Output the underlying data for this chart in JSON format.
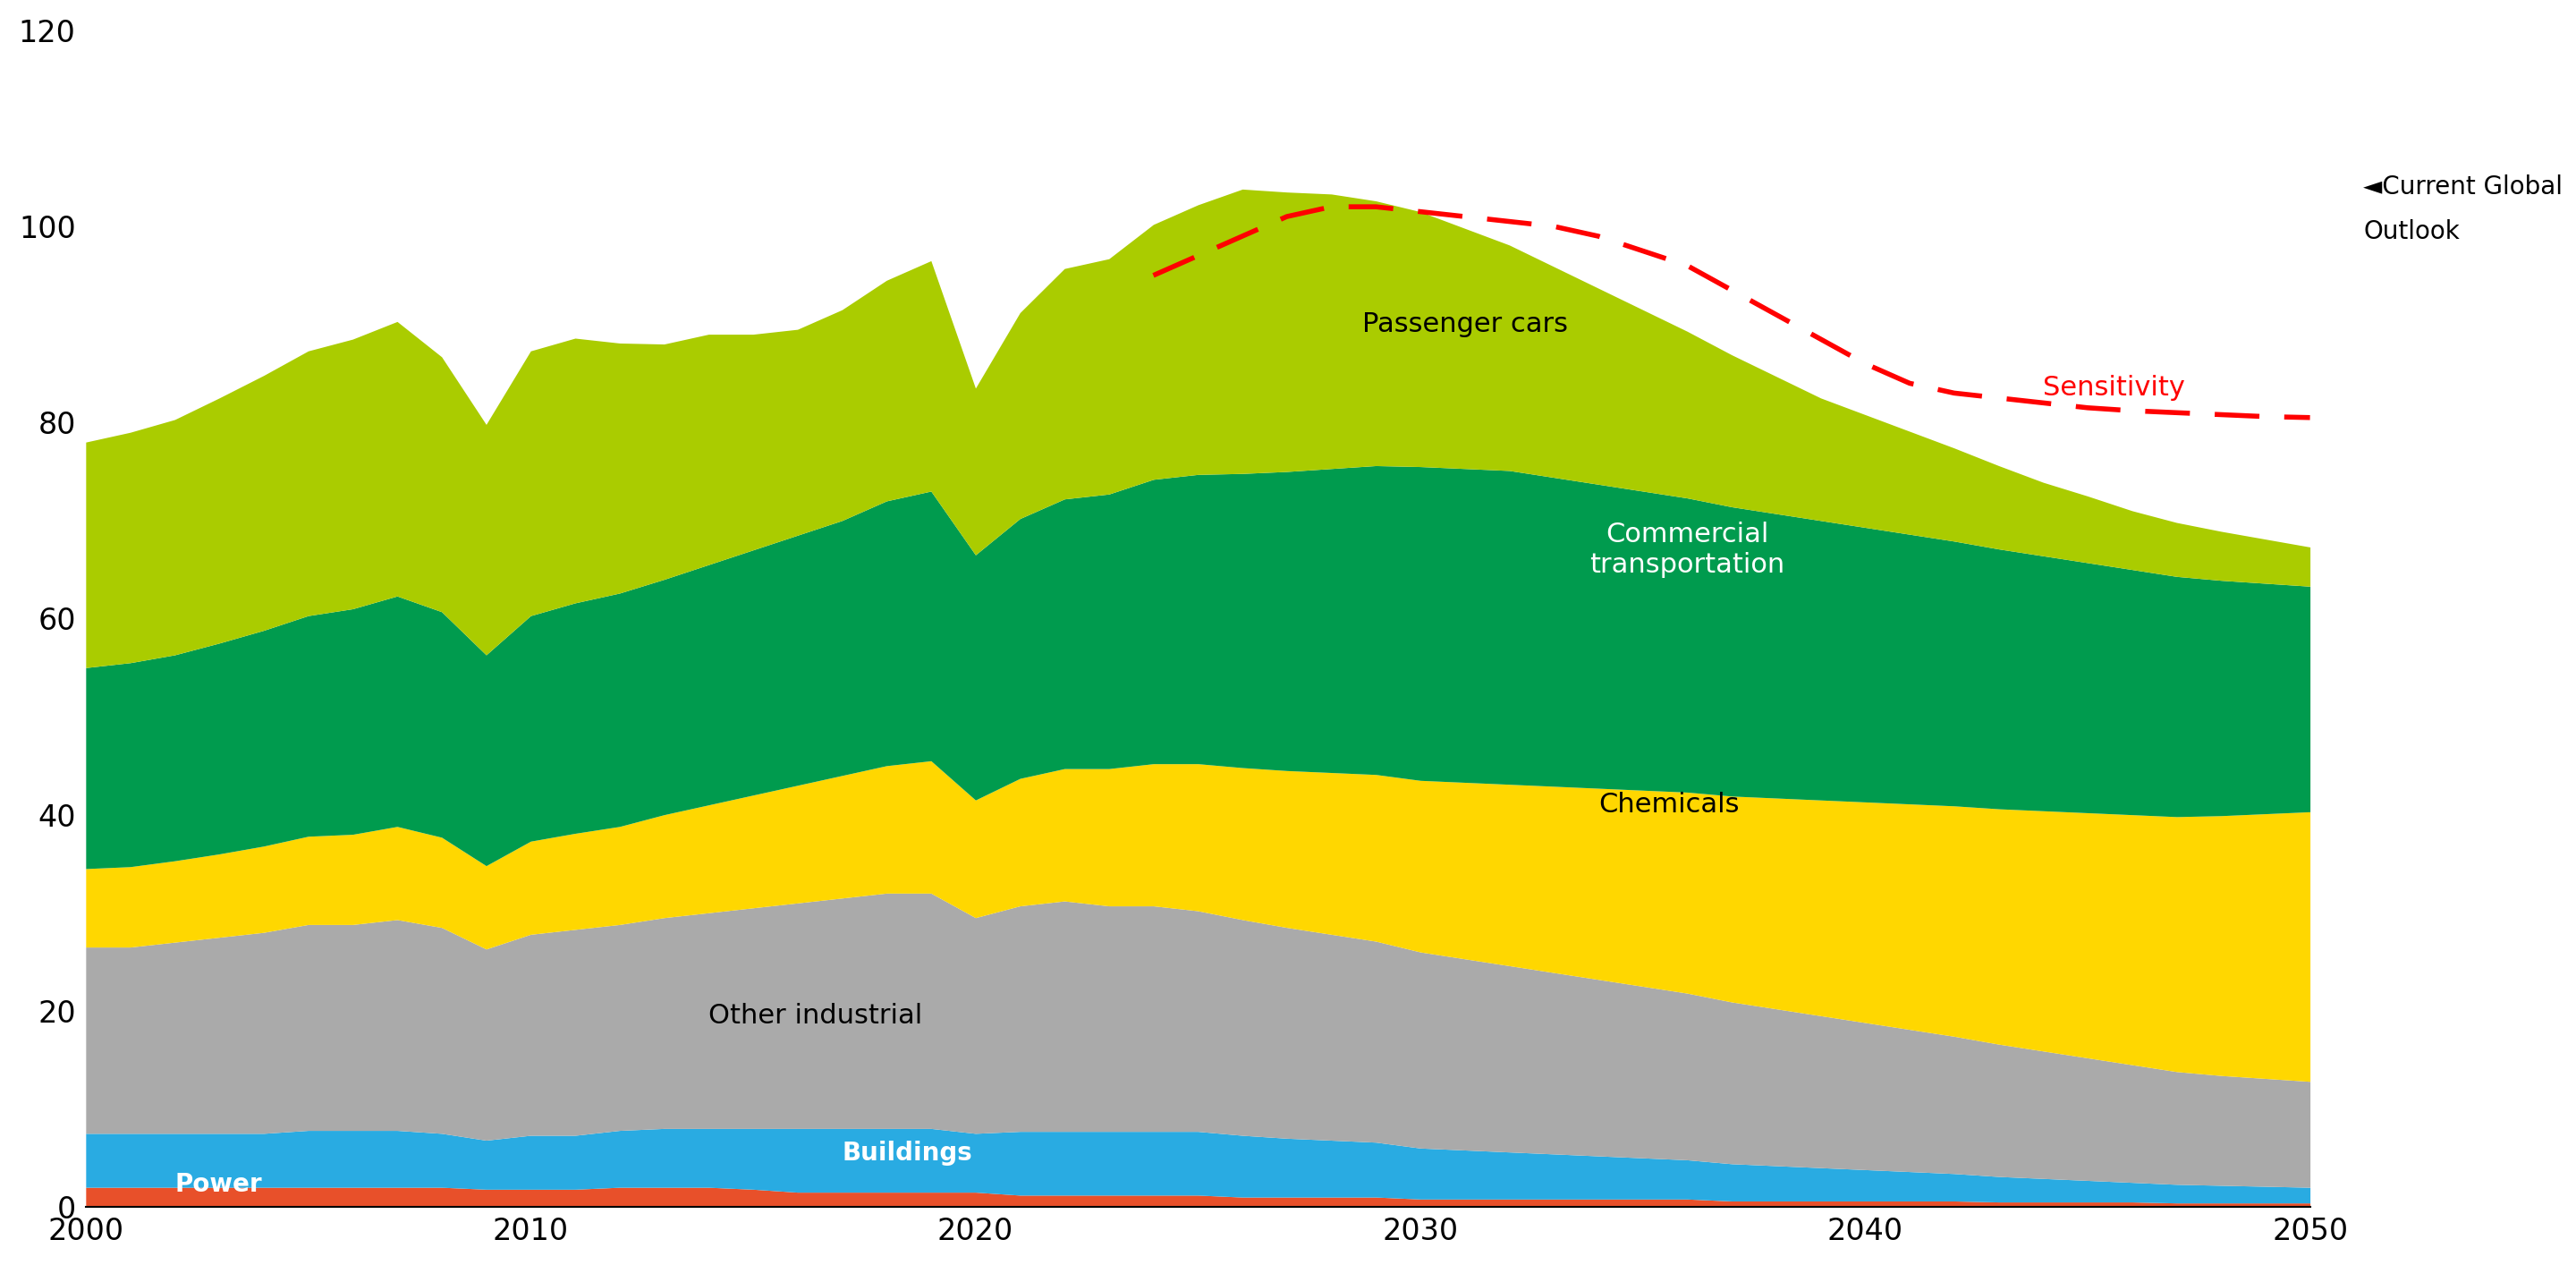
{
  "years": [
    2000,
    2001,
    2002,
    2003,
    2004,
    2005,
    2006,
    2007,
    2008,
    2009,
    2010,
    2011,
    2012,
    2013,
    2014,
    2015,
    2016,
    2017,
    2018,
    2019,
    2020,
    2021,
    2022,
    2023,
    2024,
    2025,
    2026,
    2027,
    2028,
    2029,
    2030,
    2031,
    2032,
    2033,
    2034,
    2035,
    2036,
    2037,
    2038,
    2039,
    2040,
    2041,
    2042,
    2043,
    2044,
    2045,
    2046,
    2047,
    2048,
    2049,
    2050
  ],
  "power": [
    2.0,
    2.0,
    2.0,
    2.0,
    2.0,
    2.0,
    2.0,
    2.0,
    2.0,
    1.8,
    1.8,
    1.8,
    2.0,
    2.0,
    2.0,
    1.8,
    1.5,
    1.5,
    1.5,
    1.5,
    1.5,
    1.2,
    1.2,
    1.2,
    1.2,
    1.2,
    1.0,
    1.0,
    1.0,
    1.0,
    0.8,
    0.8,
    0.8,
    0.8,
    0.8,
    0.8,
    0.8,
    0.6,
    0.6,
    0.6,
    0.6,
    0.6,
    0.6,
    0.5,
    0.5,
    0.5,
    0.5,
    0.4,
    0.4,
    0.4,
    0.4
  ],
  "buildings": [
    5.5,
    5.5,
    5.5,
    5.5,
    5.5,
    5.8,
    5.8,
    5.8,
    5.5,
    5.0,
    5.5,
    5.5,
    5.8,
    6.0,
    6.0,
    6.2,
    6.5,
    6.5,
    6.5,
    6.5,
    6.0,
    6.5,
    6.5,
    6.5,
    6.5,
    6.5,
    6.3,
    6.0,
    5.8,
    5.6,
    5.2,
    5.0,
    4.8,
    4.6,
    4.4,
    4.2,
    4.0,
    3.8,
    3.6,
    3.4,
    3.2,
    3.0,
    2.8,
    2.6,
    2.4,
    2.2,
    2.0,
    1.9,
    1.8,
    1.7,
    1.6
  ],
  "other_industrial": [
    19.0,
    19.0,
    19.5,
    20.0,
    20.5,
    21.0,
    21.0,
    21.5,
    21.0,
    19.5,
    20.5,
    21.0,
    21.0,
    21.5,
    22.0,
    22.5,
    23.0,
    23.5,
    24.0,
    24.0,
    22.0,
    23.0,
    23.5,
    23.0,
    23.0,
    22.5,
    22.0,
    21.5,
    21.0,
    20.5,
    20.0,
    19.5,
    19.0,
    18.5,
    18.0,
    17.5,
    17.0,
    16.5,
    16.0,
    15.5,
    15.0,
    14.5,
    14.0,
    13.5,
    13.0,
    12.5,
    12.0,
    11.5,
    11.2,
    11.0,
    10.8
  ],
  "chemicals": [
    8.0,
    8.2,
    8.3,
    8.5,
    8.8,
    9.0,
    9.2,
    9.5,
    9.2,
    8.5,
    9.5,
    9.8,
    10.0,
    10.5,
    11.0,
    11.5,
    12.0,
    12.5,
    13.0,
    13.5,
    12.0,
    13.0,
    13.5,
    14.0,
    14.5,
    15.0,
    15.5,
    16.0,
    16.5,
    17.0,
    17.5,
    18.0,
    18.5,
    19.0,
    19.5,
    20.0,
    20.5,
    21.0,
    21.5,
    22.0,
    22.5,
    23.0,
    23.5,
    24.0,
    24.5,
    25.0,
    25.5,
    26.0,
    26.5,
    27.0,
    27.5
  ],
  "commercial_transport": [
    20.5,
    20.8,
    21.0,
    21.5,
    22.0,
    22.5,
    23.0,
    23.5,
    23.0,
    21.5,
    23.0,
    23.5,
    23.8,
    24.0,
    24.5,
    25.0,
    25.5,
    26.0,
    27.0,
    27.5,
    25.0,
    26.5,
    27.5,
    28.0,
    29.0,
    29.5,
    30.0,
    30.5,
    31.0,
    31.5,
    32.0,
    32.0,
    32.0,
    31.5,
    31.0,
    30.5,
    30.0,
    29.5,
    29.0,
    28.5,
    28.0,
    27.5,
    27.0,
    26.5,
    26.0,
    25.5,
    25.0,
    24.5,
    24.0,
    23.5,
    23.0
  ],
  "passenger_cars": [
    23.0,
    23.5,
    24.0,
    25.0,
    26.0,
    27.0,
    27.5,
    28.0,
    26.0,
    23.5,
    27.0,
    27.0,
    25.5,
    24.0,
    23.5,
    22.0,
    21.0,
    21.5,
    22.5,
    23.5,
    17.0,
    21.0,
    23.5,
    24.0,
    26.0,
    27.5,
    29.0,
    28.5,
    28.0,
    27.0,
    26.0,
    24.5,
    23.0,
    21.5,
    20.0,
    18.5,
    17.0,
    15.5,
    14.0,
    12.5,
    11.5,
    10.5,
    9.5,
    8.5,
    7.5,
    6.8,
    6.0,
    5.5,
    5.0,
    4.5,
    4.0
  ],
  "sensitivity_line": [
    null,
    null,
    null,
    null,
    null,
    null,
    null,
    null,
    null,
    null,
    null,
    null,
    null,
    null,
    null,
    null,
    null,
    null,
    null,
    null,
    null,
    null,
    null,
    null,
    95.0,
    97.0,
    99.0,
    101.0,
    102.0,
    102.0,
    101.5,
    101.0,
    100.5,
    100.0,
    99.0,
    97.5,
    96.0,
    93.5,
    91.0,
    88.5,
    86.0,
    84.0,
    83.0,
    82.5,
    82.0,
    81.5,
    81.2,
    81.0,
    80.8,
    80.6,
    80.5
  ],
  "colors": {
    "power": "#E8502A",
    "buildings": "#29ABE2",
    "other_industrial": "#AAAAAA",
    "chemicals": "#FFD700",
    "commercial_transport": "#009B4E",
    "passenger_cars": "#AACC00"
  },
  "sensitivity_color": "#FF0000",
  "xlim": [
    2000,
    2050
  ],
  "ylim": [
    0,
    120
  ],
  "yticks": [
    0,
    20,
    40,
    60,
    80,
    100,
    120
  ],
  "xticks": [
    2000,
    2010,
    2020,
    2030,
    2040,
    2050
  ],
  "background_color": "#FFFFFF",
  "label_other": "Other industrial",
  "label_chemicals": "Chemicals",
  "label_passenger": "Passenger cars",
  "label_sensitivity": "Sensitivity",
  "label_cgo_line1": "◄Current Global",
  "label_cgo_line2": "Outlook"
}
